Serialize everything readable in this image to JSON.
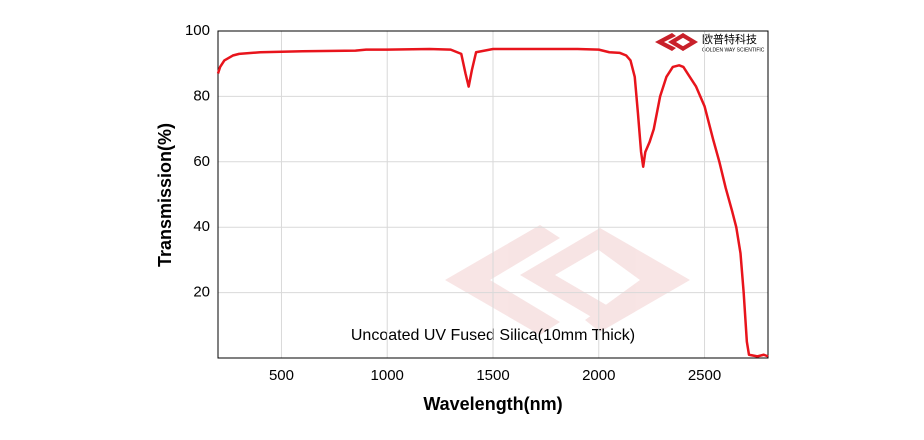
{
  "chart_data": {
    "type": "line",
    "x_label": "Wavelength(nm)",
    "y_label": "Transmission(%)",
    "annotation": "Uncoated UV Fused Silica(10mm Thick)",
    "logo": {
      "name": "欧普特科技",
      "subtitle": "GOLDEN WAY SCIENTIFIC"
    },
    "xlim": [
      200,
      2800
    ],
    "ylim": [
      0,
      100
    ],
    "xticks": [
      500,
      1000,
      1500,
      2000,
      2500
    ],
    "yticks": [
      20,
      40,
      60,
      80,
      100
    ],
    "grid": true,
    "x": [
      200,
      210,
      230,
      270,
      300,
      400,
      600,
      850,
      900,
      1000,
      1200,
      1300,
      1350,
      1370,
      1385,
      1400,
      1420,
      1500,
      1700,
      1900,
      2000,
      2050,
      2100,
      2130,
      2150,
      2170,
      2185,
      2200,
      2210,
      2220,
      2240,
      2260,
      2290,
      2320,
      2350,
      2380,
      2400,
      2430,
      2460,
      2500,
      2540,
      2570,
      2600,
      2630,
      2650,
      2670,
      2685,
      2700,
      2710,
      2750,
      2780,
      2800
    ],
    "series": [
      {
        "color": "#e8141c",
        "values": [
          87,
          89,
          91,
          92.5,
          93,
          93.5,
          93.8,
          94,
          94.3,
          94.3,
          94.5,
          94.3,
          93,
          87,
          83,
          88,
          93.5,
          94.5,
          94.5,
          94.5,
          94.3,
          93.5,
          93.3,
          92.5,
          91,
          86,
          75,
          63,
          58.5,
          63,
          66,
          70,
          80,
          86,
          89,
          89.5,
          89,
          86,
          83,
          77,
          67,
          60,
          52,
          45,
          40,
          32,
          20,
          5,
          1,
          0.5,
          1,
          0.5
        ]
      }
    ]
  }
}
